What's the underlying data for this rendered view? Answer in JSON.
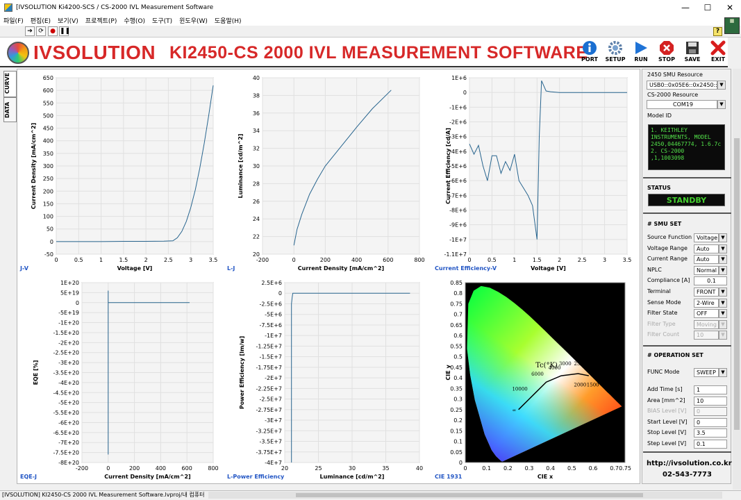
{
  "window": {
    "title": "[IVSOLUTION Ki4200-SCS / CS-2000 IVL Measurement Software",
    "minimize": "—",
    "maximize": "☐",
    "close": "✕"
  },
  "menu": [
    "파일(F)",
    "편집(E)",
    "보기(V)",
    "프로젝트(P)",
    "수행(O)",
    "도구(T)",
    "윈도우(W)",
    "도움말(H)"
  ],
  "header": {
    "logo": "IVSOLUTION",
    "title": "KI2450-CS 2000 IVL MEASUREMENT SOFTWARE",
    "buttons": [
      {
        "label": "PORT",
        "icon": "info-icon"
      },
      {
        "label": "SETUP",
        "icon": "gear-icon"
      },
      {
        "label": "RUN",
        "icon": "play-icon"
      },
      {
        "label": "STOP",
        "icon": "stop-icon"
      },
      {
        "label": "SAVE",
        "icon": "disk-icon"
      },
      {
        "label": "EXIT",
        "icon": "x-icon"
      }
    ]
  },
  "tabs": [
    "CURVE",
    "DATA"
  ],
  "panel": {
    "smu_label": "2450 SMU Resource",
    "smu_value": "USB0::0x05E6::0x2450::",
    "cs_label": "CS-2000 Resource",
    "cs_value": "COM19",
    "model_label": "Model ID",
    "model_text": "1. KEITHLEY INSTRUMENTS, MODEL 2450,04467774, 1.6.7c\n2. CS-2000  ,1,1003098",
    "status_label": "STATUS",
    "status": "STANDBY",
    "smu_set": "# SMU SET",
    "smu_fields": [
      {
        "label": "Source Function",
        "value": "Voltage",
        "dropdown": true,
        "disabled": false
      },
      {
        "label": "Voltage Range",
        "value": "Auto",
        "dropdown": true,
        "disabled": false
      },
      {
        "label": "Current Range",
        "value": "Auto",
        "dropdown": true,
        "disabled": false
      },
      {
        "label": "NPLC",
        "value": "Normal",
        "dropdown": true,
        "disabled": false
      },
      {
        "label": "Compliance [A]",
        "value": "0.1",
        "dropdown": false,
        "disabled": false
      },
      {
        "label": "Terminal",
        "value": "FRONT",
        "dropdown": true,
        "disabled": false
      },
      {
        "label": "Sense Mode",
        "value": "2-Wire",
        "dropdown": true,
        "disabled": false
      },
      {
        "label": "Filter State",
        "value": "OFF",
        "dropdown": true,
        "disabled": false
      },
      {
        "label": "Filter Type",
        "value": "Moving",
        "dropdown": true,
        "disabled": true
      },
      {
        "label": "Filter Count",
        "value": "10",
        "dropdown": true,
        "disabled": true
      }
    ],
    "op_set": "# OPERATION SET",
    "func_label": "FUNC Mode",
    "func_value": "SWEEP",
    "op_fields": [
      {
        "label": "Add Time [s]",
        "value": "1",
        "disabled": false
      },
      {
        "label": "Area [mm^2]",
        "value": "10",
        "disabled": false
      },
      {
        "label": "BIAS Level [V]",
        "value": "0",
        "disabled": true
      },
      {
        "label": "Start Level [V]",
        "value": "0",
        "disabled": false
      },
      {
        "label": "Stop Level [V]",
        "value": "3.5",
        "disabled": false
      },
      {
        "label": "Step Level [V]",
        "value": "0.1",
        "disabled": false
      }
    ],
    "url": "http://ivsolution.co.kr",
    "phone": "02-543-7773"
  },
  "statusbar": "[IVSOLUTION] KI2450-CS 2000 IVL Measurement Software.lvproj/내 컴퓨터",
  "chart_data": [
    {
      "type": "line",
      "name": "J-V",
      "xlabel": "Voltage [V]",
      "ylabel": "Current Density [mA/cm^2]",
      "xlim": [
        0,
        3.5
      ],
      "ylim": [
        -50,
        650
      ],
      "xticks": [
        "0",
        "0.5",
        "1",
        "1.5",
        "2",
        "2.5",
        "3",
        "3.5"
      ],
      "yticks": [
        "-50",
        "0",
        "50",
        "100",
        "150",
        "200",
        "250",
        "300",
        "350",
        "400",
        "450",
        "500",
        "550",
        "600",
        "650"
      ],
      "x": [
        0,
        0.5,
        1,
        1.5,
        2,
        2.4,
        2.6,
        2.7,
        2.8,
        2.9,
        3.0,
        3.1,
        3.2,
        3.3,
        3.4,
        3.5
      ],
      "y": [
        0,
        0,
        0,
        1,
        1,
        1.5,
        3,
        15,
        40,
        80,
        135,
        205,
        290,
        390,
        500,
        620
      ]
    },
    {
      "type": "line",
      "name": "L-J",
      "xlabel": "Current Density [mA/cm^2]",
      "ylabel": "Luminance [cd/m^2]",
      "xlim": [
        -200,
        800
      ],
      "ylim": [
        20,
        40
      ],
      "xticks": [
        "-200",
        "0",
        "200",
        "400",
        "600",
        "800"
      ],
      "yticks": [
        "20",
        "22",
        "24",
        "26",
        "28",
        "30",
        "32",
        "34",
        "36",
        "38",
        "40"
      ],
      "x": [
        0,
        20,
        50,
        100,
        150,
        200,
        300,
        400,
        500,
        620
      ],
      "y": [
        21,
        22.8,
        24.5,
        26.8,
        28.5,
        30,
        32.2,
        34.4,
        36.5,
        38.6
      ]
    },
    {
      "type": "line",
      "name": "Current Efficiency-V",
      "xlabel": "Voltage [V]",
      "ylabel": "Current Efficiency [cd/A]",
      "xlim": [
        0,
        3.5
      ],
      "ylim": [
        -11000000,
        1000000
      ],
      "xticks": [
        "0",
        "0.5",
        "1",
        "1.5",
        "2",
        "2.5",
        "3",
        "3.5"
      ],
      "yticks": [
        "1E+6",
        "0",
        "-1E+6",
        "-2E+6",
        "-3E+6",
        "-4E+6",
        "-5E+6",
        "-6E+6",
        "-7E+6",
        "-8E+6",
        "-9E+6",
        "-1E+7",
        "-1.1E+7"
      ],
      "x": [
        0,
        0.1,
        0.2,
        0.3,
        0.4,
        0.5,
        0.6,
        0.7,
        0.8,
        0.9,
        1.0,
        1.1,
        1.2,
        1.3,
        1.4,
        1.5,
        1.55,
        1.6,
        1.7,
        1.8,
        2,
        2.5,
        3,
        3.5
      ],
      "y": [
        -3500000,
        -4200000,
        -3600000,
        -5000000,
        -6000000,
        -4300000,
        -4300000,
        -5500000,
        -4700000,
        -5300000,
        -4200000,
        -6000000,
        -6500000,
        -7000000,
        -7700000,
        -10000000,
        -3000000,
        800000,
        100000,
        50000,
        0,
        0,
        0,
        0
      ]
    },
    {
      "type": "line",
      "name": "EQE-J",
      "xlabel": "Current Density [mA/cm^2]",
      "ylabel": "EQE [%]",
      "xlim": [
        -200,
        800
      ],
      "ylim": [
        -8e+20,
        1e+20
      ],
      "xticks": [
        "-200",
        "0",
        "200",
        "400",
        "600",
        "800"
      ],
      "yticks": [
        "1E+20",
        "5E+19",
        "0",
        "-5E+19",
        "-1E+20",
        "-1.5E+20",
        "-2E+20",
        "-2.5E+20",
        "-3E+20",
        "-3.5E+20",
        "-4E+20",
        "-4.5E+20",
        "-5E+20",
        "-5.5E+20",
        "-6E+20",
        "-6.5E+20",
        "-7E+20",
        "-7.5E+20",
        "-8E+20"
      ],
      "x": [
        0,
        0,
        0,
        1,
        100,
        300,
        620
      ],
      "y": [
        -7.6e+20,
        6e+19,
        0,
        0,
        0,
        0,
        0
      ]
    },
    {
      "type": "line",
      "name": "L-Power Efficiency",
      "xlabel": "Luminance [cd/m^2]",
      "ylabel": "Power Efficiency [lm/w]",
      "xlim": [
        20,
        40
      ],
      "ylim": [
        -40000000,
        2500000
      ],
      "xticks": [
        "20",
        "25",
        "30",
        "35",
        "40"
      ],
      "yticks": [
        "2.5E+6",
        "0",
        "-2.5E+6",
        "-5E+6",
        "-7.5E+6",
        "-1E+7",
        "-1.25E+7",
        "-1.5E+7",
        "-1.75E+7",
        "-2E+7",
        "-2.25E+7",
        "-2.5E+7",
        "-2.75E+7",
        "-3E+7",
        "-3.25E+7",
        "-3.5E+7",
        "-3.75E+7",
        "-4E+7"
      ],
      "x": [
        21,
        21,
        21.1,
        21.2,
        25,
        30,
        35,
        38.6
      ],
      "y": [
        -40000000,
        -2500000,
        -1000000,
        0,
        0,
        0,
        0,
        0
      ]
    },
    {
      "type": "scatter",
      "name": "CIE 1931",
      "xlabel": "CIE x",
      "ylabel": "CIE y",
      "xlim": [
        0,
        0.75
      ],
      "ylim": [
        0,
        0.85
      ],
      "xticks": [
        "0",
        "0.1",
        "0.2",
        "0.3",
        "0.4",
        "0.5",
        "0.6",
        "0.7",
        "0.75"
      ],
      "yticks": [
        "0",
        "0.05",
        "0.1",
        "0.15",
        "0.2",
        "0.25",
        "0.3",
        "0.35",
        "0.4",
        "0.45",
        "0.5",
        "0.55",
        "0.6",
        "0.65",
        "0.7",
        "0.75",
        "0.8",
        "0.85"
      ],
      "annotations": [
        "Tc(°K)",
        "10000",
        "6000",
        "4000",
        "3000",
        "2500",
        "2000",
        "1500",
        "∞"
      ]
    }
  ]
}
